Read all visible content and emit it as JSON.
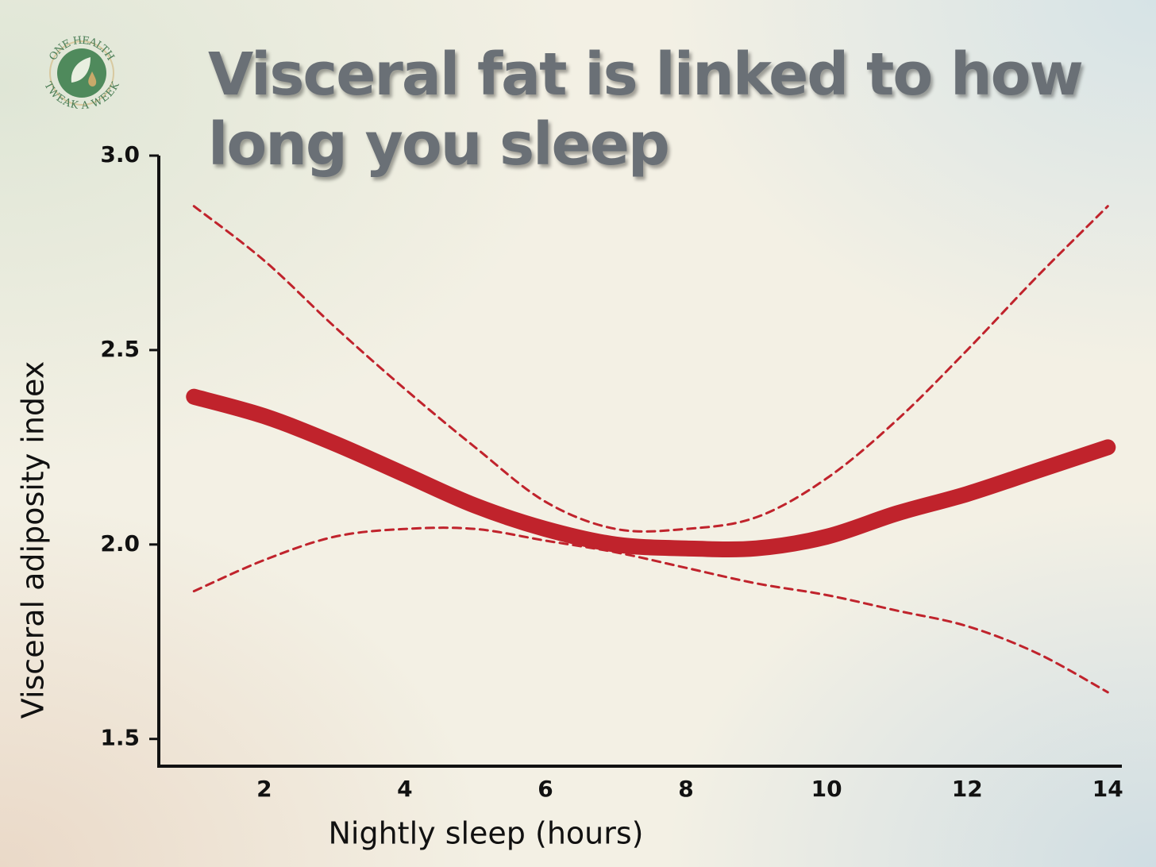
{
  "logo": {
    "top_text": "ONE HEALTH",
    "bottom_text": "TWEAK A WEEK"
  },
  "chart_data": {
    "type": "line",
    "title": "Visceral fat is linked to how long you sleep",
    "x_label": "Nightly sleep (hours)",
    "y_label": "Visceral adiposity index",
    "x": [
      1,
      2,
      3,
      4,
      5,
      6,
      7,
      8,
      9,
      10,
      11,
      12,
      13,
      14
    ],
    "series": [
      {
        "color": "#c0232c",
        "style": "solid",
        "values": [
          2.38,
          2.33,
          2.26,
          2.18,
          2.1,
          2.04,
          2.0,
          1.99,
          1.99,
          2.02,
          2.08,
          2.13,
          2.19,
          2.25
        ]
      },
      {
        "color": "#c0232c",
        "style": "dashed",
        "values": [
          2.87,
          2.73,
          2.56,
          2.4,
          2.25,
          2.11,
          2.04,
          2.04,
          2.07,
          2.17,
          2.32,
          2.5,
          2.69,
          2.87
        ]
      },
      {
        "color": "#c0232c",
        "style": "dashed",
        "values": [
          1.88,
          1.96,
          2.02,
          2.04,
          2.04,
          2.01,
          1.98,
          1.94,
          1.9,
          1.87,
          1.83,
          1.79,
          1.72,
          1.62
        ]
      }
    ],
    "xlim": [
      0.5,
      14.2
    ],
    "xticks": [
      2,
      4,
      6,
      8,
      10,
      12,
      14
    ],
    "ylim": [
      1.43,
      3.0
    ],
    "yticks": [
      {
        "value": 1.5,
        "label": "1.5"
      },
      {
        "value": 2.0,
        "label": "2.0"
      },
      {
        "value": 2.5,
        "label": "2.5"
      },
      {
        "value": 3.0,
        "label": "3.0"
      }
    ],
    "grid": false
  }
}
